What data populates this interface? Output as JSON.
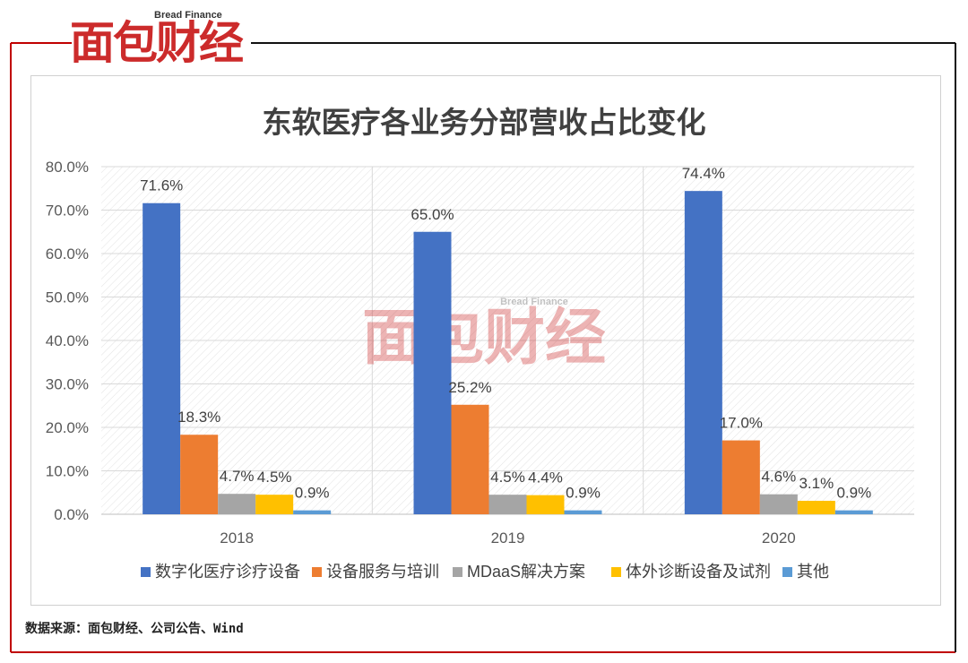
{
  "branding": {
    "logo_cn": "面包财经",
    "logo_en": "Bread Finance"
  },
  "source_note": "数据来源：面包财经、公司公告、Wind",
  "colors": {
    "frame_red": "#c00000",
    "logo_red": "#cc2b2b"
  },
  "chart_data": {
    "type": "bar",
    "title": "东软医疗各业务分部营收占比变化",
    "xlabel": "",
    "ylabel": "",
    "categories": [
      "2018",
      "2019",
      "2020"
    ],
    "ylim": [
      0,
      80
    ],
    "yticks": [
      0,
      10,
      20,
      30,
      40,
      50,
      60,
      70,
      80
    ],
    "ytick_labels": [
      "0.0%",
      "10.0%",
      "20.0%",
      "30.0%",
      "40.0%",
      "50.0%",
      "60.0%",
      "70.0%",
      "80.0%"
    ],
    "grid": true,
    "legend_position": "bottom",
    "series": [
      {
        "name": "数字化医疗诊疗设备",
        "color": "#4472c4",
        "values": [
          71.6,
          65.0,
          74.4
        ],
        "labels": [
          "71.6%",
          "65.0%",
          "74.4%"
        ]
      },
      {
        "name": "设备服务与培训",
        "color": "#ed7d31",
        "values": [
          18.3,
          25.2,
          17.0
        ],
        "labels": [
          "18.3%",
          "25.2%",
          "17.0%"
        ]
      },
      {
        "name": "MDaaS解决方案",
        "color": "#a5a5a5",
        "values": [
          4.7,
          4.5,
          4.6
        ],
        "labels": [
          "4.7%",
          "4.5%",
          "4.6%"
        ]
      },
      {
        "name": "体外诊断设备及试剂",
        "color": "#ffc000",
        "values": [
          4.5,
          4.4,
          3.1
        ],
        "labels": [
          "4.5%",
          "4.4%",
          "3.1%"
        ]
      },
      {
        "name": "其他",
        "color": "#5b9bd5",
        "values": [
          0.9,
          0.9,
          0.9
        ],
        "labels": [
          "0.9%",
          "0.9%",
          "0.9%"
        ]
      }
    ]
  }
}
